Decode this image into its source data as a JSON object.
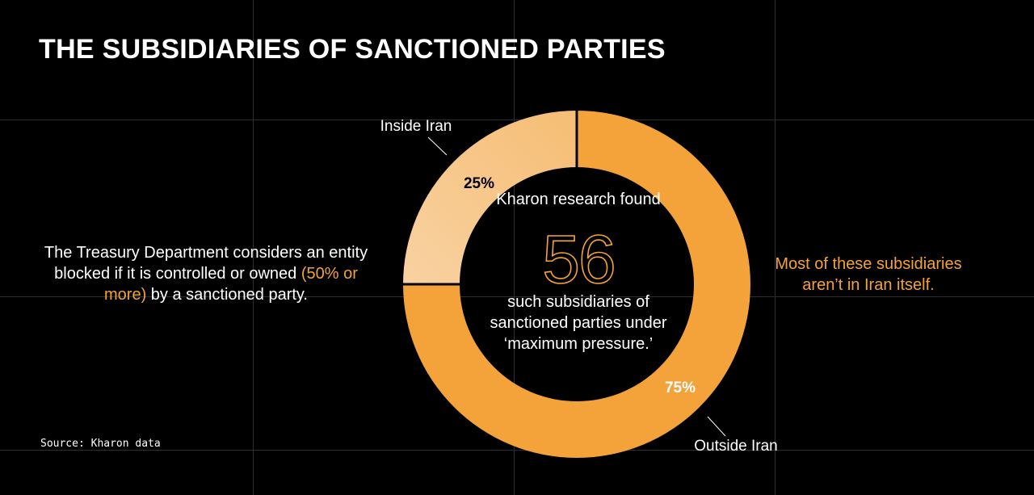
{
  "title": "THE SUBSIDIARIES OF SANCTIONED PARTIES",
  "left_note": {
    "before": "The Treasury Department considers an entity blocked if it is controlled or owned",
    "highlight": "(50% or more)",
    "after": "by a sanctioned party."
  },
  "right_note": "Most of these subsidiaries aren’t in Iran itself.",
  "center": {
    "intro": "Kharon research found",
    "number": "56",
    "outro": "such subsidiaries of sanctioned parties under ‘maximum pressure.’"
  },
  "source": "Source: Kharon data",
  "colors": {
    "background": "#000000",
    "accent": "#f4a33a",
    "light_slice": "#f7c98c",
    "grid": "#2f2f2f"
  },
  "chart_data": {
    "type": "pie",
    "style": "donut",
    "title": "THE SUBSIDIARIES OF SANCTIONED PARTIES",
    "slices": [
      {
        "name": "Outside Iran",
        "value": 75,
        "label": "75%"
      },
      {
        "name": "Inside Iran",
        "value": 25,
        "label": "25%"
      }
    ]
  }
}
